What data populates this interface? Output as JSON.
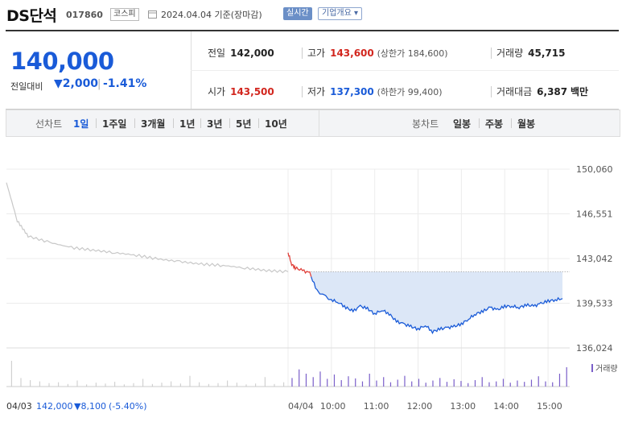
{
  "header": {
    "stock_name": "DS단석",
    "stock_code": "017860",
    "market": "코스피",
    "date_text": "2024.04.04  기준(장마감)",
    "realtime_label": "실시간",
    "info_label": "기업개요 ▾"
  },
  "summary": {
    "price": "140,000",
    "diff_label": "전일대비",
    "diff_abs": "▼2,000",
    "diff_pct": "-1.41%",
    "prev_close_label": "전일",
    "prev_close": "142,000",
    "high_label": "고가",
    "high": "143,600",
    "upper_limit": "(상한가 184,600)",
    "volume_label": "거래량",
    "volume": "45,715",
    "open_label": "시가",
    "open": "143,500",
    "low_label": "저가",
    "low": "137,300",
    "lower_limit": "(하한가 99,400)",
    "amount_label": "거래대금",
    "amount": "6,387",
    "amount_unit": "백만"
  },
  "tabs": {
    "line_label": "선차트",
    "line_items": [
      "1일",
      "1주일",
      "3개월",
      "1년",
      "3년",
      "5년",
      "10년"
    ],
    "candle_label": "봉차트",
    "candle_items": [
      "일봉",
      "주봉",
      "월봉"
    ]
  },
  "chart_data": {
    "type": "line",
    "y_ticks": [
      "150,060",
      "146,551",
      "143,042",
      "139,533",
      "136,024"
    ],
    "ylim": [
      136024,
      150060
    ],
    "prev_close": 142000,
    "x_tick_labels": [
      "04/03",
      "04/04",
      "10:00",
      "11:00",
      "12:00",
      "13:00",
      "14:00",
      "15:00"
    ],
    "volume_label": "거래량",
    "bottom_info": {
      "date": "04/03",
      "price": "142,000",
      "change": "▼8,100",
      "change_pct": "(-5.40%)"
    },
    "series": [
      {
        "day": "04/03",
        "color": "#c8c8c8",
        "x": [
          "09:00",
          "09:15",
          "09:30",
          "10:00",
          "10:30",
          "11:00",
          "11:30",
          "12:00",
          "12:30",
          "13:00",
          "13:30",
          "14:00",
          "14:30",
          "15:00",
          "15:30"
        ],
        "values": [
          149000,
          146000,
          144800,
          144300,
          143900,
          143700,
          143500,
          143300,
          143000,
          142800,
          142600,
          142500,
          142300,
          142100,
          142000
        ]
      },
      {
        "day": "04/04",
        "color": "#1a5bd8",
        "x": [
          "09:00",
          "09:05",
          "09:10",
          "09:20",
          "09:30",
          "09:40",
          "10:00",
          "10:10",
          "10:20",
          "10:30",
          "10:40",
          "10:50",
          "11:00",
          "11:10",
          "11:20",
          "11:30",
          "11:40",
          "11:50",
          "12:00",
          "12:10",
          "12:20",
          "12:30",
          "12:40",
          "12:50",
          "13:00",
          "13:10",
          "13:20",
          "13:30",
          "13:40",
          "13:50",
          "14:00",
          "14:10",
          "14:20",
          "14:30",
          "14:40",
          "14:50",
          "15:00",
          "15:10",
          "15:20"
        ],
        "values": [
          143500,
          142600,
          142300,
          142100,
          141900,
          140500,
          139800,
          139600,
          139200,
          138900,
          139300,
          139100,
          138700,
          139000,
          138700,
          138100,
          137900,
          137700,
          137500,
          137800,
          137300,
          137500,
          137600,
          137700,
          137900,
          138300,
          138700,
          138900,
          139200,
          139000,
          139300,
          139300,
          139200,
          139400,
          139300,
          139500,
          139700,
          139800,
          139900
        ]
      }
    ],
    "volume_day1": [
      60,
      20,
      15,
      12,
      8,
      10,
      6,
      14,
      5,
      9,
      7,
      11,
      5,
      8,
      18,
      6,
      9,
      12,
      7,
      25,
      10,
      6,
      8,
      14,
      9,
      5,
      7,
      22,
      6,
      10
    ],
    "volume_day2": [
      20,
      40,
      30,
      22,
      35,
      18,
      28,
      15,
      24,
      19,
      12,
      30,
      14,
      22,
      10,
      16,
      25,
      12,
      18,
      9,
      14,
      20,
      11,
      17,
      13,
      8,
      15,
      22,
      10,
      12,
      18,
      9,
      14,
      11,
      16,
      24,
      12,
      10,
      30,
      45
    ]
  }
}
